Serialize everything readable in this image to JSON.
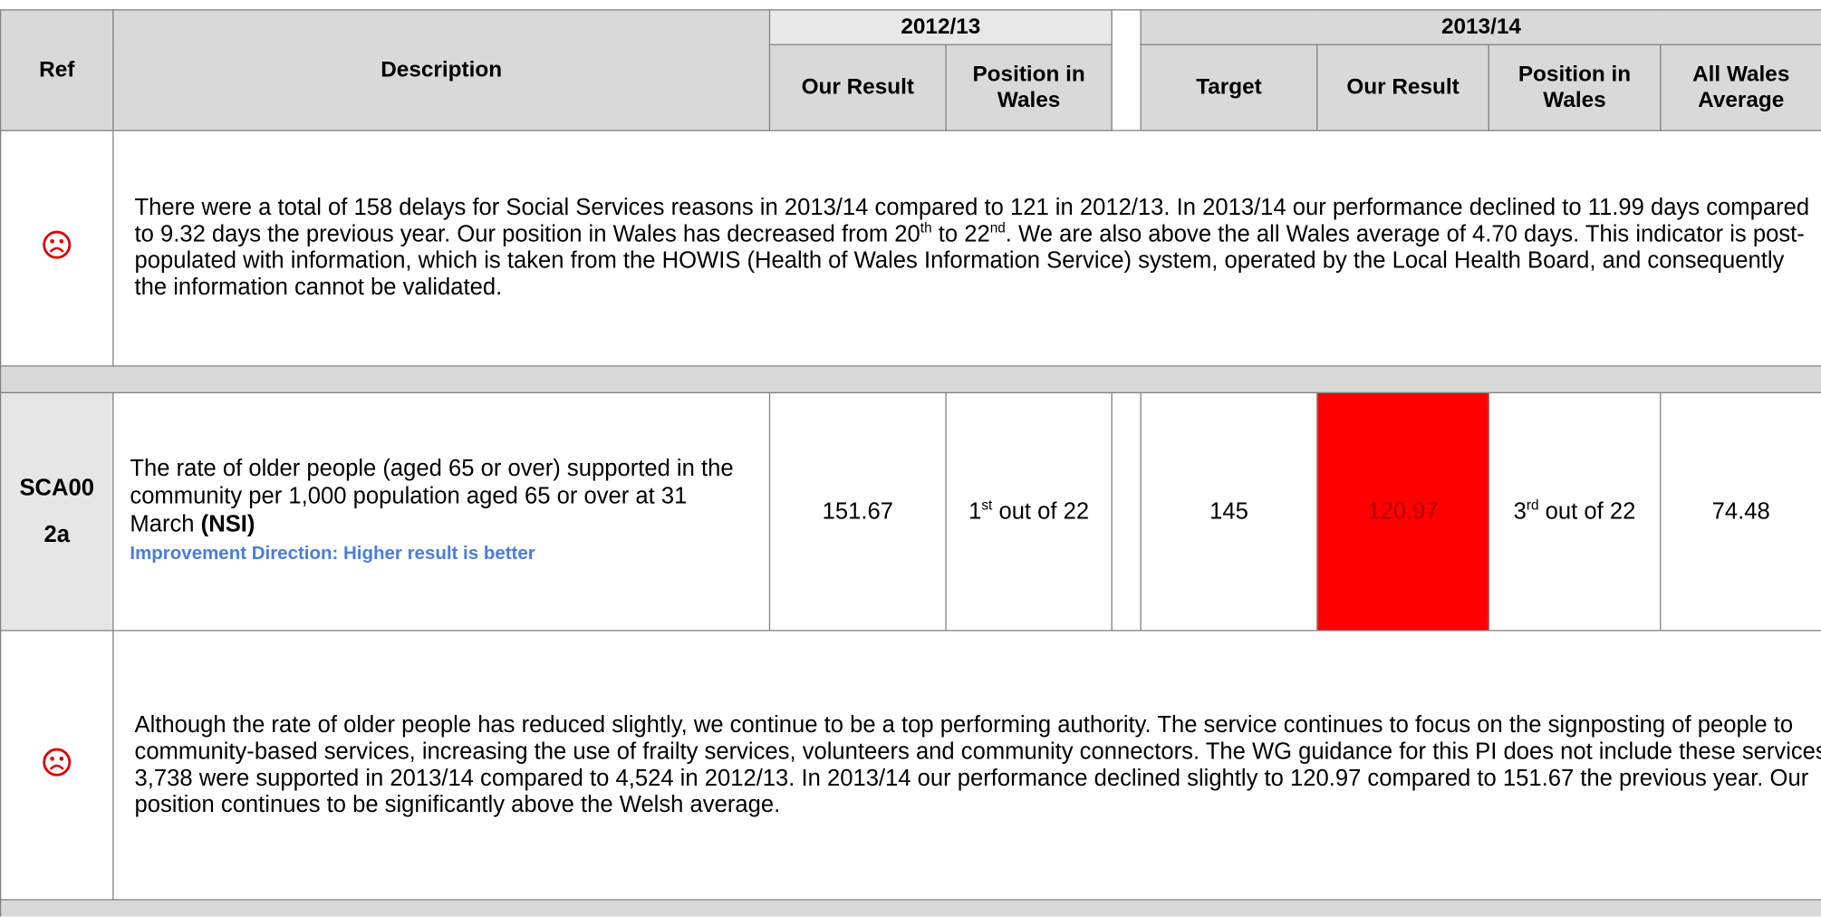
{
  "header": {
    "ref": "Ref",
    "description": "Description",
    "year_1": "2012/13",
    "year_1_columns": [
      "Our Result",
      "Position in Wales"
    ],
    "year_2": "2013/14",
    "year_2_columns": [
      "Target",
      "Our Result",
      "Position in Wales",
      "All Wales Average"
    ]
  },
  "rows": [
    {
      "comment": [
        "There were a total of 158 delays for Social Services reasons in 2013/14 compared to 121 in 2012/13. In 2013/14 our performance declined to 11.99 days compared to 9.32 days the previous year. Our position in Wales has decreased from 20",
        "th",
        " to 22",
        "nd",
        ". We are also above the all Wales average of 4.70 days.  This indicator is post-populated with information, which is taken from the HOWIS (Health of Wales Information Service) system, operated by the Local Health Board, and consequently the information cannot be validated."
      ]
    },
    {
      "ref": "SCA002a",
      "description": "The rate of older people (aged 65 or over) supported in the community per 1,000 population aged 65 or over at 31 March",
      "nsi": "(NSI)",
      "improvement_direction": "Improvement Direction: Higher result is better",
      "result_2012_13": 151.67,
      "position_2012_13": [
        "1",
        "st",
        " out of 22"
      ],
      "target": 145,
      "result_2013_14": 120.97,
      "position_2013_14": [
        "3",
        "rd",
        " out of 22"
      ],
      "all_wales_average": 74.48,
      "comment": [
        "Although the rate of older people has reduced slightly, we continue to be a top performing authority. The service continues to focus on the signposting of people to community-based services, increasing the use of frailty services, volunteers and community connectors. The WG guidance for this PI does not include these services. 3,738 were supported in 2013/14 compared to 4,524 in 2012/13. In 2013/14 our performance declined slightly to 120.97 compared to 151.67 the previous year. Our position continues to be significantly above the Welsh average."
      ]
    }
  ]
}
